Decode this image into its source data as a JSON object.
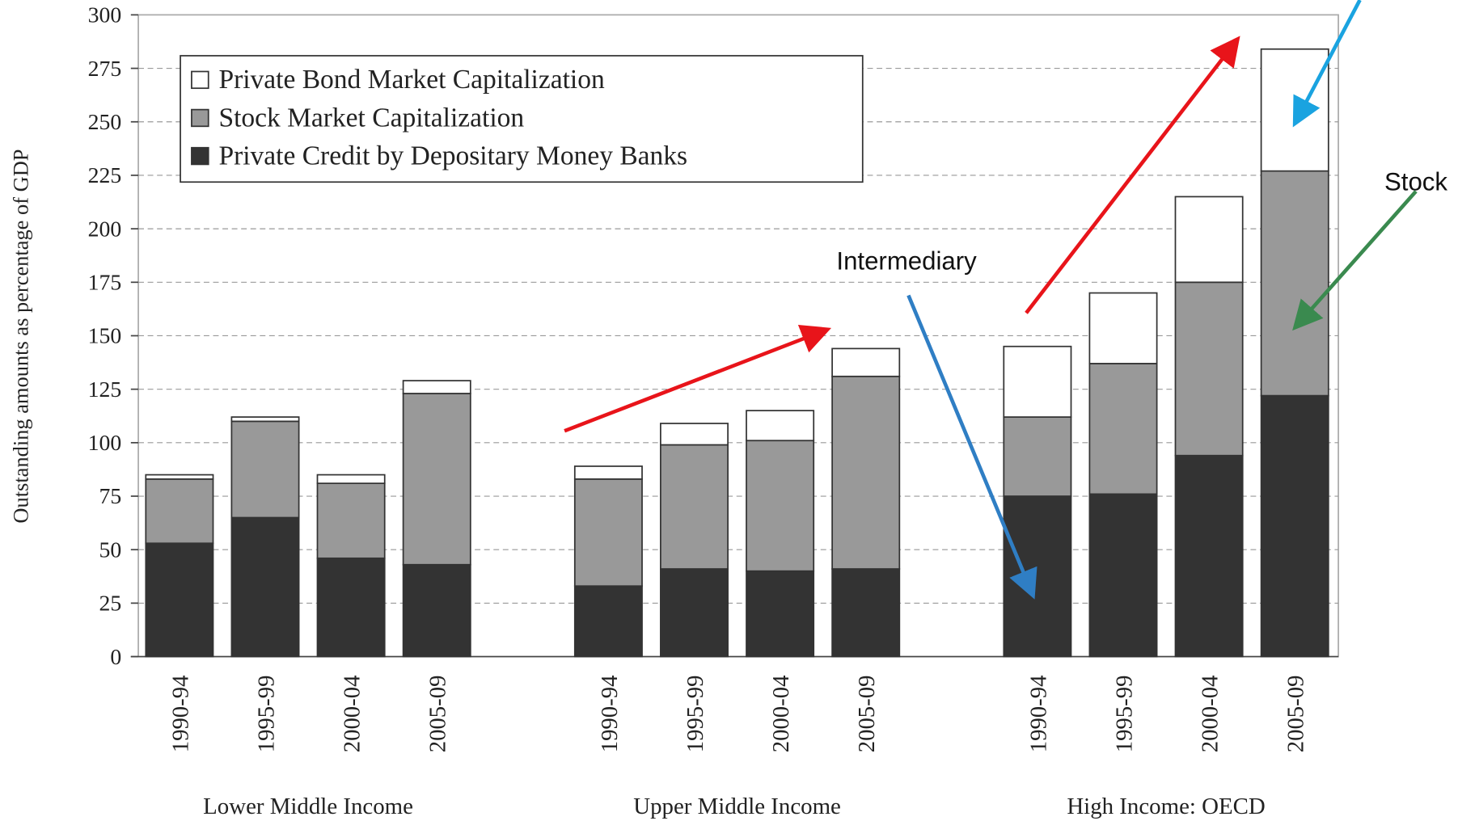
{
  "chart_data": {
    "type": "stacked_bar",
    "ylabel": "Outstanding amounts as percentage of GDP",
    "categories": [
      "1990-94",
      "1995-99",
      "2000-04",
      "2005-09",
      "1990-94",
      "1995-99",
      "2000-04",
      "2005-09",
      "1990-94",
      "1995-99",
      "2000-04",
      "2005-09"
    ],
    "groups": [
      "Lower Middle Income",
      "Upper Middle Income",
      "High Income: OECD"
    ],
    "series": [
      {
        "name": "Private Credit by Depositary Money Banks",
        "color": "#333333",
        "values": [
          53,
          65,
          46,
          43,
          33,
          41,
          40,
          41,
          75,
          76,
          94,
          122
        ]
      },
      {
        "name": "Stock Market Capitalization",
        "color": "#999999",
        "values": [
          30,
          45,
          35,
          80,
          50,
          58,
          61,
          90,
          37,
          61,
          81,
          105
        ]
      },
      {
        "name": "Private Bond  Market Capitalization",
        "color": "#ffffff",
        "values": [
          2,
          2,
          4,
          6,
          6,
          10,
          14,
          13,
          33,
          33,
          40,
          57
        ]
      }
    ],
    "ylim": [
      0,
      300
    ],
    "yticks": [
      0,
      25,
      50,
      75,
      100,
      125,
      150,
      175,
      200,
      225,
      250,
      275,
      300
    ],
    "grid": true,
    "annotations": [
      "Intermediary",
      "Stock"
    ]
  }
}
